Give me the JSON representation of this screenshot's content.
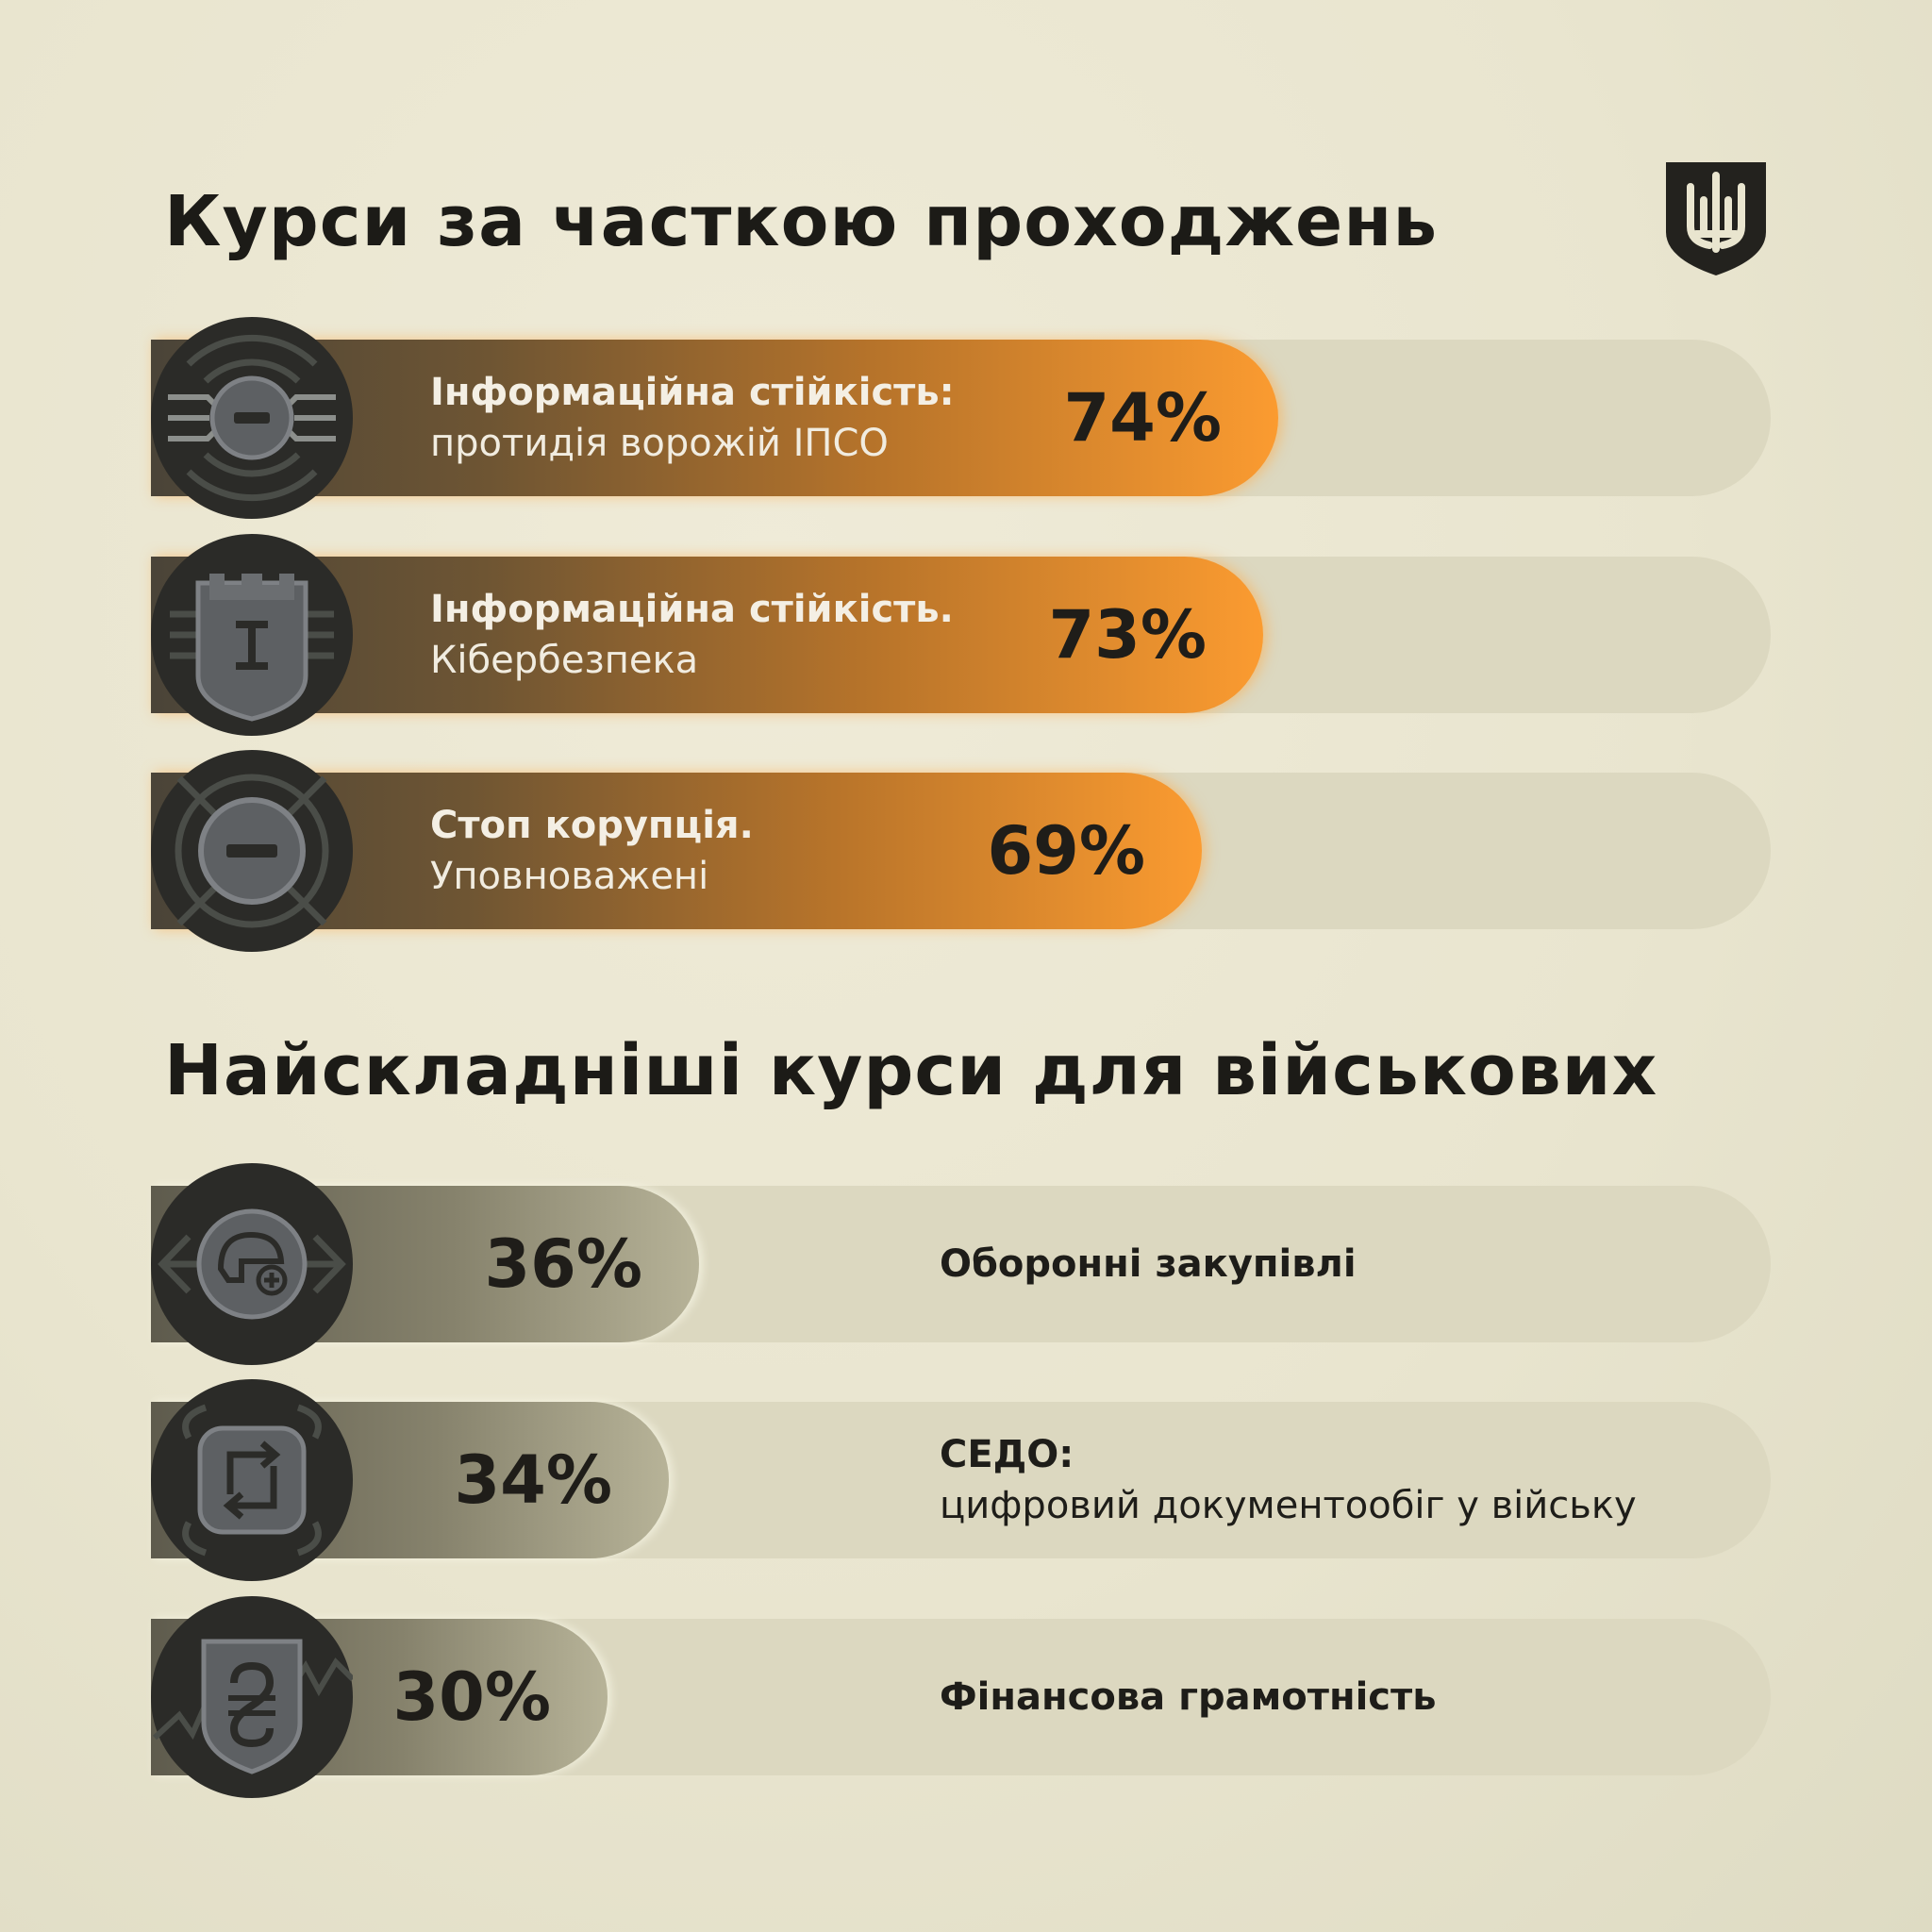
{
  "chart_data": [
    {
      "type": "bar",
      "title": "Курси за часткою проходжень",
      "xlabel": "",
      "ylabel": "",
      "ylim": [
        0,
        100
      ],
      "categories": [
        {
          "bold": "Інформаційна стійкість:",
          "regular": "протидія ворожій ІПСО"
        },
        {
          "bold": "Інформаційна стійкість.",
          "regular": "Кібербезпека"
        },
        {
          "bold": "Стоп корупція.",
          "regular": "Уповноважені"
        }
      ],
      "values": [
        74,
        73,
        69
      ],
      "value_labels": [
        "74%",
        "73%",
        "69%"
      ],
      "icons": [
        "spider-shield-icon",
        "castle-tower-icon",
        "crosshair-minus-icon"
      ],
      "bar_color": "#fb9b30"
    },
    {
      "type": "bar",
      "title": "Найскладніші курси для військових",
      "xlabel": "",
      "ylabel": "",
      "ylim": [
        0,
        100
      ],
      "categories": [
        {
          "bold": "Оборонні закупівлі",
          "regular": ""
        },
        {
          "bold": "СЕДО:",
          "regular": "цифровий документообіг у війську"
        },
        {
          "bold": "Фінансова грамотність",
          "regular": ""
        }
      ],
      "values": [
        36,
        34,
        30
      ],
      "value_labels": [
        "36%",
        "34%",
        "30%"
      ],
      "icons": [
        "helmet-plus-icon",
        "document-exchange-icon",
        "hryvnia-shield-icon"
      ],
      "bar_color": "#b7b398"
    }
  ],
  "colors": {
    "background": "#e9e5cf",
    "track": "#dcd8c0",
    "icon_circle": "#2b2b28",
    "text": "#1c1b17"
  },
  "logo": {
    "icon": "trident-shield-icon"
  }
}
